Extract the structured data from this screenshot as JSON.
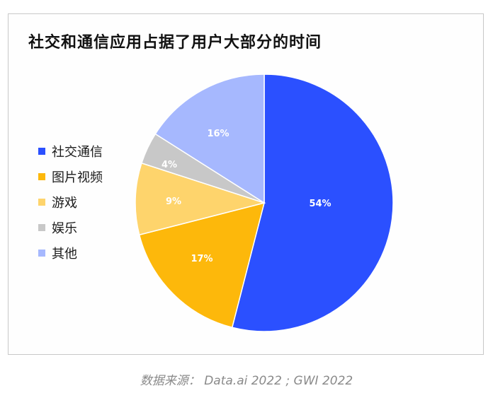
{
  "title": "社交和通信应用占据了用户大部分的时间",
  "source": "数据来源： Data.ai 2022 ; GWI 2022",
  "legend": [
    {
      "label": "社交通信",
      "color": "#2B50FF"
    },
    {
      "label": "图片视频",
      "color": "#FDB80B"
    },
    {
      "label": "游戏",
      "color": "#FED46C"
    },
    {
      "label": "娱乐",
      "color": "#C8C8C8"
    },
    {
      "label": "其他",
      "color": "#A6B8FE"
    }
  ],
  "slices": [
    {
      "label": "54%"
    },
    {
      "label": "17%"
    },
    {
      "label": "9%"
    },
    {
      "label": "4%"
    },
    {
      "label": "16%"
    }
  ],
  "chart_data": {
    "type": "pie",
    "title": "社交和通信应用占据了用户大部分的时间",
    "categories": [
      "社交通信",
      "图片视频",
      "游戏",
      "娱乐",
      "其他"
    ],
    "values": [
      54,
      17,
      9,
      4,
      16
    ],
    "unit": "%",
    "colors": [
      "#2B50FF",
      "#FDB80B",
      "#FED46C",
      "#C8C8C8",
      "#A6B8FE"
    ],
    "legend_position": "left",
    "start_angle": "12 o'clock, clockwise",
    "annotation": "数据来源： Data.ai 2022 ; GWI 2022"
  }
}
